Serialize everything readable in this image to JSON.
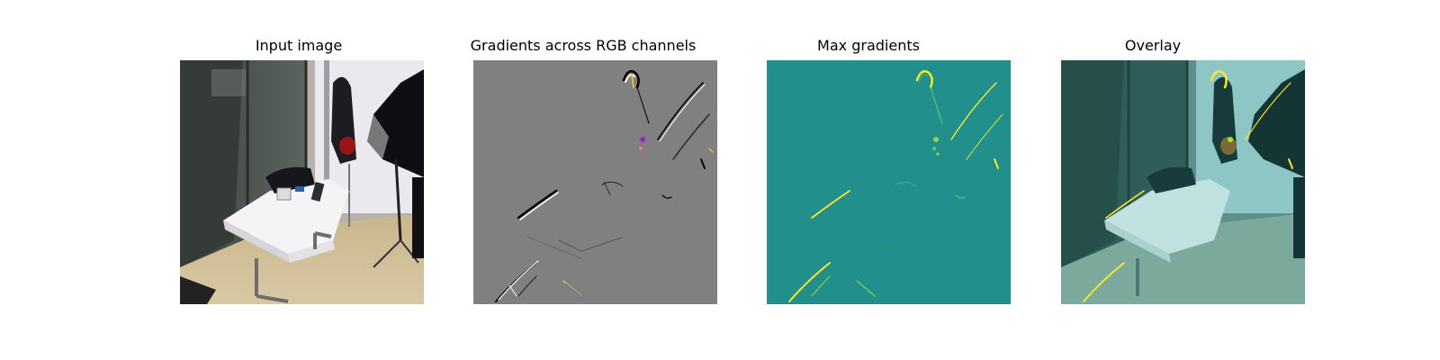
{
  "figure": {
    "panels": [
      {
        "title": "Input image",
        "image": "photo of room with white-clothed table, glass wall, coat rack and black umbrella lamp"
      },
      {
        "title": "Gradients across RGB channels",
        "image": "gray saliency map with thin black/white edge strokes"
      },
      {
        "title": "Max gradients",
        "image": "teal heatmap with yellow-green edge highlights"
      },
      {
        "title": "Overlay",
        "image": "teal-tinted photo with yellow edge highlights"
      }
    ],
    "colors": {
      "gradient_bg": "#808080",
      "max_bg": "#21908d",
      "highlight": "#fde725",
      "highlight_mid": "#5ec962"
    }
  }
}
